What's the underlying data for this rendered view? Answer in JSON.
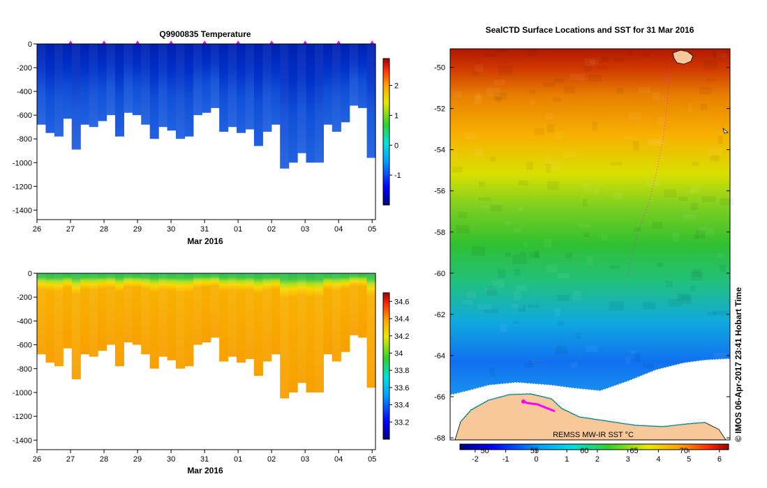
{
  "chart_data": [
    {
      "id": "temperature",
      "type": "heatmap",
      "title": "Q9900835  Temperature",
      "xlabel": "Mar 2016",
      "x_tick_labels": [
        "26",
        "27",
        "28",
        "29",
        "30",
        "31",
        "01",
        "02",
        "03",
        "04",
        "05"
      ],
      "y_tick_labels": [
        "0",
        "-200",
        "-400",
        "-600",
        "-800",
        "-1000",
        "-1200",
        "-1400"
      ],
      "y_ticks": [
        0,
        -200,
        -400,
        -600,
        -800,
        -1000,
        -1200,
        -1400
      ],
      "ylim": [
        -1480,
        0
      ],
      "xlim": [
        0,
        10.1
      ],
      "colorbar_ticks": [
        "-1",
        "0",
        "1",
        "2"
      ],
      "colorbar_values": [
        -1,
        0,
        1,
        2
      ],
      "colorbar_range": [
        -2,
        2.9
      ],
      "profile_markers_x": [
        1,
        2,
        3,
        4,
        5,
        6,
        7,
        8,
        9,
        10
      ],
      "profile_bottom_depths": [
        -680,
        -750,
        -780,
        -630,
        -890,
        -680,
        -700,
        -650,
        -600,
        -780,
        -580,
        -600,
        -680,
        -800,
        -700,
        -730,
        -800,
        -780,
        -600,
        -580,
        -540,
        -740,
        -700,
        -750,
        -720,
        -860,
        -740,
        -680,
        -1050,
        -1000,
        -920,
        -1000,
        -1000,
        -680,
        -740,
        -660,
        -520,
        -540,
        -960
      ]
    },
    {
      "id": "salinity",
      "type": "heatmap",
      "title": "",
      "xlabel": "Mar 2016",
      "x_tick_labels": [
        "26",
        "27",
        "28",
        "29",
        "30",
        "31",
        "01",
        "02",
        "03",
        "04",
        "05"
      ],
      "y_tick_labels": [
        "0",
        "-200",
        "-400",
        "-600",
        "-800",
        "-1000",
        "-1200",
        "-1400"
      ],
      "y_ticks": [
        0,
        -200,
        -400,
        -600,
        -800,
        -1000,
        -1200,
        -1400
      ],
      "ylim": [
        -1480,
        0
      ],
      "xlim": [
        0,
        10.1
      ],
      "colorbar_ticks": [
        "33.2",
        "33.4",
        "33.6",
        "33.8",
        "34",
        "34.2",
        "34.4",
        "34.6"
      ],
      "colorbar_values": [
        33.2,
        33.4,
        33.6,
        33.8,
        34,
        34.2,
        34.4,
        34.6
      ],
      "colorbar_range": [
        33.0,
        34.7
      ]
    },
    {
      "id": "sst_map",
      "type": "heatmap",
      "title": "SealCTD Surface Locations and SST for 31 Mar 2016",
      "y_tick_labels": [
        "-50",
        "-52",
        "-54",
        "-56",
        "-58",
        "-60",
        "-62",
        "-64",
        "-66",
        "-68"
      ],
      "lat_values": [
        -50,
        -52,
        -54,
        -56,
        -58,
        -60,
        -62,
        -64,
        -66,
        -68
      ],
      "lat_range": [
        -49.1,
        -68.1
      ],
      "lon_tick_labels": [
        "50",
        "55",
        "60",
        "65",
        "70"
      ],
      "lon_values": [
        50,
        55,
        60,
        65,
        70
      ],
      "lon_range": [
        47.5,
        74.5
      ],
      "colorbar_ticks": [
        "-2",
        "-1",
        "0",
        "1",
        "2",
        "3",
        "4",
        "5",
        "6"
      ],
      "colorbar_values": [
        -2,
        -1,
        0,
        1,
        2,
        3,
        4,
        5,
        6
      ],
      "colorbar_range": [
        -2.5,
        6.3
      ],
      "annotation": "REMSS MW-IR SST °C",
      "side_label": "© IMOS 06-Apr-2017 23:41 Hobart Time"
    }
  ],
  "colors": {
    "land": "#f8c898",
    "track": "#ff00ff",
    "axis": "#000000"
  }
}
